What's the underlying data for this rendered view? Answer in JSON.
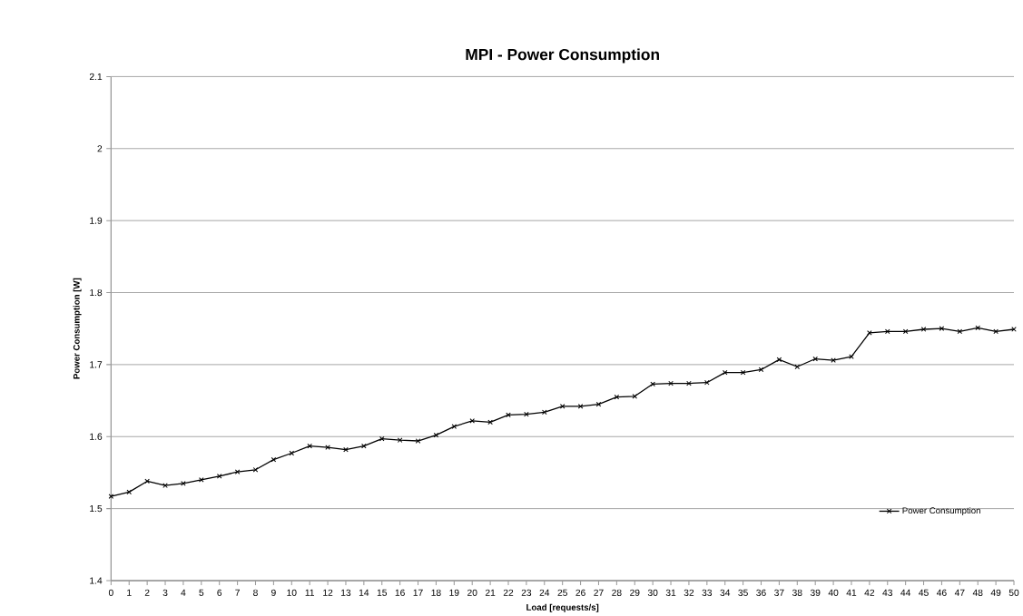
{
  "chart_data": {
    "type": "line",
    "title": "MPI - Power Consumption",
    "xlabel": "Load [requests/s]",
    "ylabel": "Power Consumption [W]",
    "x": [
      0,
      1,
      2,
      3,
      4,
      5,
      6,
      7,
      8,
      9,
      10,
      11,
      12,
      13,
      14,
      15,
      16,
      17,
      18,
      19,
      20,
      21,
      22,
      23,
      24,
      25,
      26,
      27,
      28,
      29,
      30,
      31,
      32,
      33,
      34,
      35,
      36,
      37,
      38,
      39,
      40,
      41,
      42,
      43,
      44,
      45,
      46,
      47,
      48,
      49,
      50
    ],
    "series": [
      {
        "name": "Power Consumption",
        "color": "#000000",
        "values": [
          1.517,
          1.523,
          1.538,
          1.532,
          1.535,
          1.54,
          1.545,
          1.551,
          1.554,
          1.568,
          1.577,
          1.587,
          1.585,
          1.582,
          1.587,
          1.597,
          1.595,
          1.594,
          1.602,
          1.614,
          1.622,
          1.62,
          1.63,
          1.631,
          1.634,
          1.642,
          1.642,
          1.645,
          1.655,
          1.656,
          1.673,
          1.674,
          1.674,
          1.675,
          1.689,
          1.689,
          1.693,
          1.707,
          1.697,
          1.708,
          1.706,
          1.711,
          1.744,
          1.746,
          1.746,
          1.749,
          1.75,
          1.746,
          1.751,
          1.746,
          1.749
        ]
      }
    ],
    "xlim": [
      0,
      50
    ],
    "xticks": [
      0,
      1,
      2,
      3,
      4,
      5,
      6,
      7,
      8,
      9,
      10,
      11,
      12,
      13,
      14,
      15,
      16,
      17,
      18,
      19,
      20,
      21,
      22,
      23,
      24,
      25,
      26,
      27,
      28,
      29,
      30,
      31,
      32,
      33,
      34,
      35,
      36,
      37,
      38,
      39,
      40,
      41,
      42,
      43,
      44,
      45,
      46,
      47,
      48,
      49,
      50
    ],
    "ylim": [
      1.4,
      2.1
    ],
    "yticks": [
      1.4,
      1.5,
      1.6,
      1.7,
      1.8,
      1.9,
      2,
      2.1
    ],
    "grid": "y",
    "legend": "bottom right",
    "marker": "cross",
    "line_style": "solid"
  }
}
